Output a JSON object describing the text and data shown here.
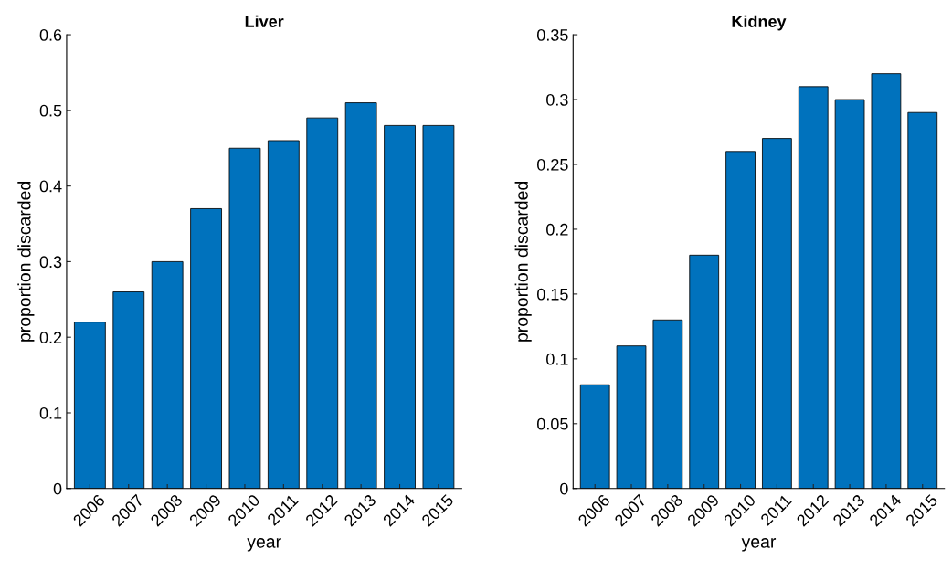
{
  "chart_data": [
    {
      "type": "bar",
      "title": "Liver",
      "xlabel": "year",
      "ylabel": "proportion discarded",
      "categories": [
        "2006",
        "2007",
        "2008",
        "2009",
        "2010",
        "2011",
        "2012",
        "2013",
        "2014",
        "2015"
      ],
      "values": [
        0.22,
        0.26,
        0.3,
        0.37,
        0.45,
        0.46,
        0.49,
        0.51,
        0.48,
        0.48
      ],
      "color": "#0072bd",
      "ylim": [
        0,
        0.6
      ],
      "yticks": [
        0,
        0.1,
        0.2,
        0.3,
        0.4,
        0.5,
        0.6
      ],
      "grid": false
    },
    {
      "type": "bar",
      "title": "Kidney",
      "xlabel": "year",
      "ylabel": "proportion discarded",
      "categories": [
        "2006",
        "2007",
        "2008",
        "2009",
        "2010",
        "2011",
        "2012",
        "2013",
        "2014",
        "2015"
      ],
      "values": [
        0.08,
        0.11,
        0.13,
        0.18,
        0.26,
        0.27,
        0.31,
        0.3,
        0.32,
        0.29
      ],
      "color": "#0072bd",
      "ylim": [
        0,
        0.35
      ],
      "yticks": [
        0,
        0.05,
        0.1,
        0.15,
        0.2,
        0.25,
        0.3,
        0.35
      ],
      "grid": false
    }
  ]
}
